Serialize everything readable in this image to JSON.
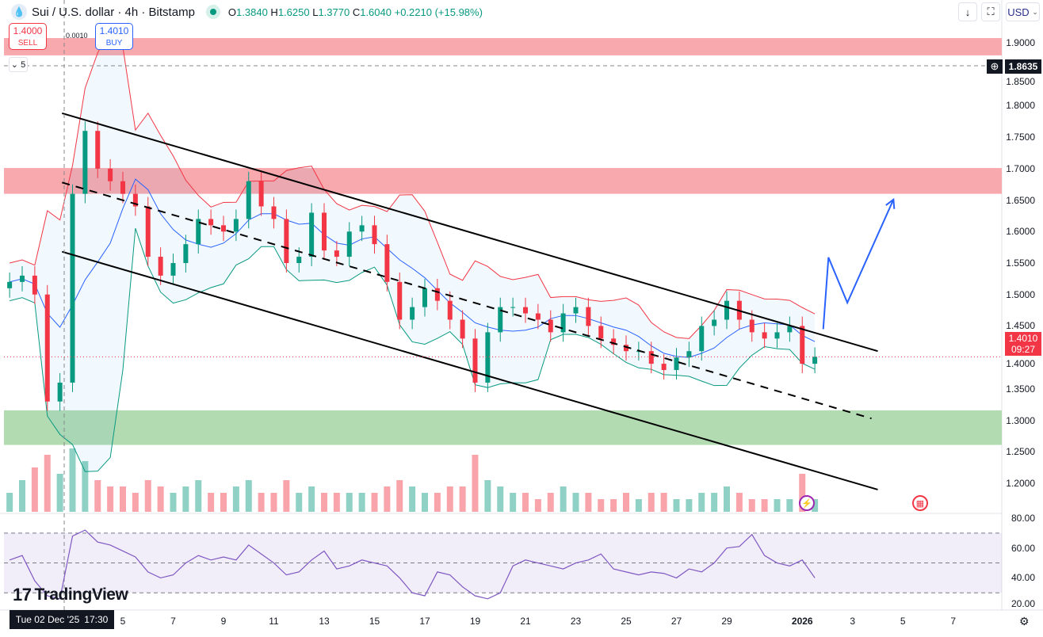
{
  "header": {
    "symbol": "Sui / U.S. dollar · 4h · Bitstamp",
    "o_label": "O",
    "o": "1.3840",
    "h_label": "H",
    "h": "1.6250",
    "l_label": "L",
    "l": "1.3770",
    "c_label": "C",
    "c": "1.6040",
    "change": "+0.2210 (+15.98%)",
    "status_color": "#089981"
  },
  "trade": {
    "sell_price": "1.4000",
    "sell_label": "SELL",
    "buy_price": "1.4010",
    "buy_label": "BUY",
    "spread": "0.0010"
  },
  "toolbar": {
    "download_icon": "arrow-down-icon",
    "fullscreen_icon": "fullscreen-icon",
    "currency": "USD"
  },
  "indicator_toggle": "5",
  "crosshair": {
    "price": "1.8635",
    "time_date": "Tue 02 Dec '25",
    "time_clock": "17:30"
  },
  "last_price": {
    "price": "1.4010",
    "countdown": "09:27",
    "color": "#f23645"
  },
  "price_axis": [
    "1.9000",
    "1.8500",
    "1.8000",
    "1.7500",
    "1.7000",
    "1.6500",
    "1.6000",
    "1.5500",
    "1.5000",
    "1.4500",
    "1.4000",
    "1.3500",
    "1.3000",
    "1.2500",
    "1.2000"
  ],
  "rsi_axis": [
    "80.00",
    "60.00",
    "40.00",
    "20.00"
  ],
  "time_axis": [
    {
      "label": "5",
      "date": "2025-12-05"
    },
    {
      "label": "7",
      "date": "2025-12-07"
    },
    {
      "label": "9",
      "date": "2025-12-09"
    },
    {
      "label": "11",
      "date": "2025-12-11"
    },
    {
      "label": "13",
      "date": "2025-12-13"
    },
    {
      "label": "15",
      "date": "2025-12-15"
    },
    {
      "label": "17",
      "date": "2025-12-17"
    },
    {
      "label": "19",
      "date": "2025-12-19"
    },
    {
      "label": "21",
      "date": "2025-12-21"
    },
    {
      "label": "23",
      "date": "2025-12-23"
    },
    {
      "label": "25",
      "date": "2025-12-25"
    },
    {
      "label": "27",
      "date": "2025-12-27"
    },
    {
      "label": "29",
      "date": "2025-12-29"
    },
    {
      "label": "2026",
      "date": "2026-01-01"
    },
    {
      "label": "3",
      "date": "2026-01-03"
    },
    {
      "label": "5",
      "date": "2026-01-05"
    },
    {
      "label": "7",
      "date": "2026-01-07"
    }
  ],
  "brand": "TradingView",
  "chart_data": {
    "type": "candlestick",
    "up_color": "#089981",
    "down_color": "#f23645",
    "ylim": [
      1.15,
      1.92
    ],
    "start": "2025-11-30T12:00",
    "step_hours": 12,
    "closes": [
      1.52,
      1.53,
      1.5,
      1.33,
      1.36,
      1.66,
      1.76,
      1.7,
      1.68,
      1.66,
      1.64,
      1.56,
      1.53,
      1.55,
      1.58,
      1.62,
      1.61,
      1.6,
      1.62,
      1.68,
      1.64,
      1.62,
      1.55,
      1.56,
      1.63,
      1.57,
      1.56,
      1.6,
      1.61,
      1.58,
      1.52,
      1.46,
      1.48,
      1.51,
      1.49,
      1.46,
      1.43,
      1.36,
      1.44,
      1.48,
      1.48,
      1.47,
      1.46,
      1.44,
      1.47,
      1.48,
      1.45,
      1.43,
      1.42,
      1.41,
      1.41,
      1.39,
      1.38,
      1.4,
      1.41,
      1.45,
      1.46,
      1.49,
      1.46,
      1.44,
      1.43,
      1.44,
      1.45,
      1.39,
      1.401
    ],
    "volume": [
      3,
      5,
      7,
      9,
      6,
      10,
      8,
      5,
      4,
      4,
      3,
      5,
      4,
      3,
      4,
      5,
      3,
      3,
      4,
      5,
      3,
      3,
      5,
      3,
      4,
      3,
      3,
      3,
      3,
      3,
      4,
      5,
      4,
      3,
      3,
      4,
      4,
      9,
      5,
      4,
      3,
      3,
      2,
      3,
      4,
      3,
      3,
      2,
      2,
      3,
      2,
      3,
      3,
      2,
      2,
      3,
      3,
      4,
      3,
      2,
      2,
      2,
      2,
      6,
      2
    ],
    "rsi": [
      52,
      55,
      38,
      28,
      26,
      68,
      72,
      64,
      62,
      58,
      54,
      44,
      40,
      42,
      50,
      55,
      52,
      54,
      52,
      62,
      56,
      50,
      42,
      44,
      52,
      58,
      46,
      48,
      52,
      50,
      48,
      40,
      30,
      28,
      44,
      42,
      34,
      28,
      26,
      30,
      48,
      52,
      50,
      48,
      46,
      50,
      52,
      56,
      46,
      44,
      42,
      44,
      43,
      40,
      46,
      44,
      50,
      60,
      61,
      69,
      55,
      50,
      48,
      52,
      40
    ],
    "rsi_levels": {
      "upper": 70,
      "middle": 50,
      "lower": 30
    },
    "zones": [
      {
        "type": "resistance",
        "from": 1.88,
        "to": 1.9075,
        "color": "#f8a9ae"
      },
      {
        "type": "resistance",
        "from": 1.66,
        "to": 1.701,
        "color": "#f8a9ae"
      },
      {
        "type": "support",
        "from": 1.261,
        "to": 1.316,
        "color": "#b2dbb2"
      }
    ],
    "channel": {
      "upper": [
        [
          "2025-12-02T14:00",
          1.788
        ],
        [
          "2026-01-04T00:00",
          1.41
        ]
      ],
      "middle": [
        [
          "2025-12-02T14:00",
          1.678
        ],
        [
          "2026-01-03T18:00",
          1.303
        ]
      ],
      "lower": [
        [
          "2025-12-02T14:00",
          1.568
        ],
        [
          "2026-01-04T00:00",
          1.19
        ]
      ]
    },
    "projection": [
      [
        "2026-01-01T20:00",
        1.445
      ],
      [
        "2026-01-02T01:00",
        1.559
      ],
      [
        "2026-01-02T19:00",
        1.487
      ],
      [
        "2026-01-04T15:00",
        1.651
      ]
    ],
    "projection_color": "#2962ff"
  }
}
